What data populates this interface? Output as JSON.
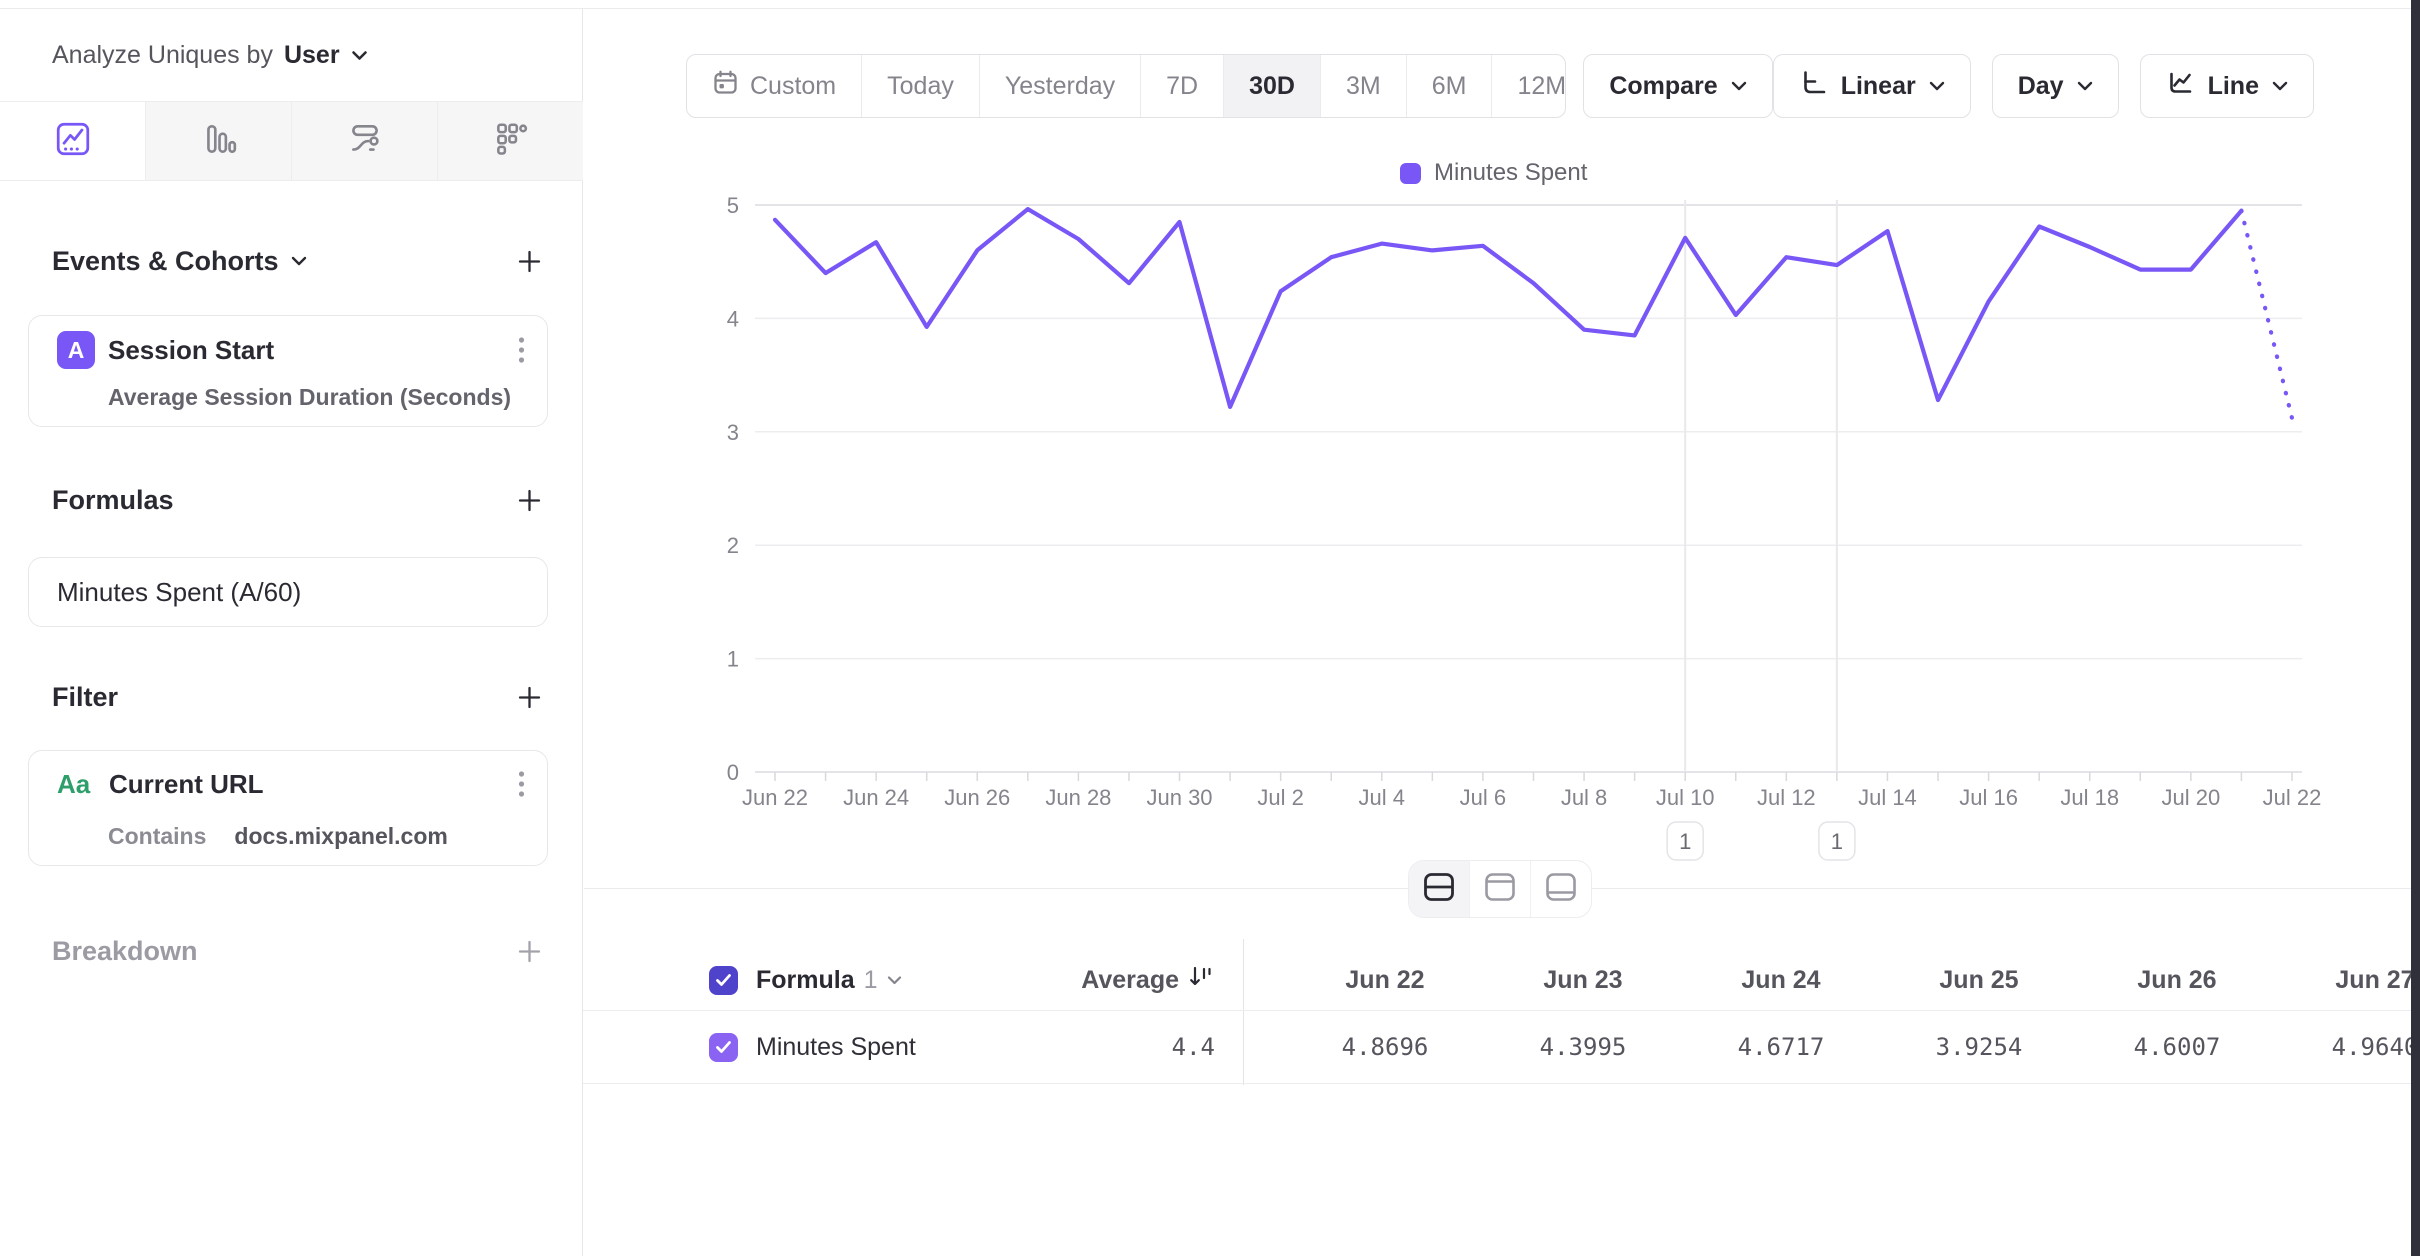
{
  "sidebar": {
    "analyze_label": "Analyze Uniques by",
    "analyze_value": "User",
    "tabs": [
      {
        "icon": "insights-line-chart",
        "active": true
      },
      {
        "icon": "bar-chart",
        "active": false
      },
      {
        "icon": "flows",
        "active": false
      },
      {
        "icon": "retention-grid",
        "active": false
      }
    ],
    "events": {
      "title": "Events & Cohorts",
      "card": {
        "badge": "A",
        "title": "Session Start",
        "subtitle": "Average Session Duration (Seconds)"
      }
    },
    "formulas": {
      "title": "Formulas",
      "card": {
        "title": "Minutes Spent (A/60)"
      }
    },
    "filter": {
      "title": "Filter",
      "card": {
        "badge": "Aa",
        "title": "Current URL",
        "operator": "Contains",
        "value": "docs.mixpanel.com"
      }
    },
    "breakdown": {
      "title": "Breakdown"
    }
  },
  "toolbar": {
    "ranges": [
      "Custom",
      "Today",
      "Yesterday",
      "7D",
      "30D",
      "3M",
      "6M",
      "12M"
    ],
    "selected_range": "30D",
    "compare_label": "Compare",
    "scale_label": "Linear",
    "interval_label": "Day",
    "chart_type_label": "Line"
  },
  "chart_data": {
    "type": "line",
    "title": "",
    "xlabel": "",
    "ylabel": "",
    "ylim": [
      0,
      5
    ],
    "yticks": [
      0,
      1,
      2,
      3,
      4,
      5
    ],
    "grid": true,
    "legend_position": "top",
    "categories": [
      "Jun 22",
      "Jun 23",
      "Jun 24",
      "Jun 25",
      "Jun 26",
      "Jun 27",
      "Jun 28",
      "Jun 29",
      "Jun 30",
      "Jul 1",
      "Jul 2",
      "Jul 3",
      "Jul 4",
      "Jul 5",
      "Jul 6",
      "Jul 7",
      "Jul 8",
      "Jul 9",
      "Jul 10",
      "Jul 11",
      "Jul 12",
      "Jul 13",
      "Jul 14",
      "Jul 15",
      "Jul 16",
      "Jul 17",
      "Jul 18",
      "Jul 19",
      "Jul 20",
      "Jul 21",
      "Jul 22"
    ],
    "xtick_step": 2,
    "series": [
      {
        "name": "Minutes Spent",
        "color": "#7857f6",
        "dotted_tail": true,
        "values": [
          4.8696,
          4.3995,
          4.6717,
          3.9254,
          4.6007,
          4.964,
          4.7,
          4.31,
          4.85,
          3.22,
          4.24,
          4.54,
          4.66,
          4.6,
          4.64,
          4.31,
          3.9,
          3.85,
          4.71,
          4.03,
          4.54,
          4.47,
          4.77,
          3.28,
          4.15,
          4.81,
          4.63,
          4.43,
          4.43,
          4.95,
          3.12
        ]
      }
    ],
    "annotations": [
      {
        "label": "1",
        "x": "Jul 10"
      },
      {
        "label": "1",
        "x": "Jul 13"
      }
    ]
  },
  "table": {
    "header": {
      "name_label": "Formula",
      "name_index": "1",
      "average_label": "Average",
      "columns": [
        "Jun 22",
        "Jun 23",
        "Jun 24",
        "Jun 25",
        "Jun 26",
        "Jun 27"
      ]
    },
    "rows": [
      {
        "name": "Minutes Spent",
        "average": "4.4",
        "values": [
          "4.8696",
          "4.3995",
          "4.6717",
          "3.9254",
          "4.6007",
          "4.9640"
        ]
      }
    ]
  },
  "colors": {
    "accent": "#7857f6",
    "header_checkbox": "#4f42cb",
    "row_checkbox": "#8a63f3",
    "filter_badge_green": "#2e9e6b"
  }
}
